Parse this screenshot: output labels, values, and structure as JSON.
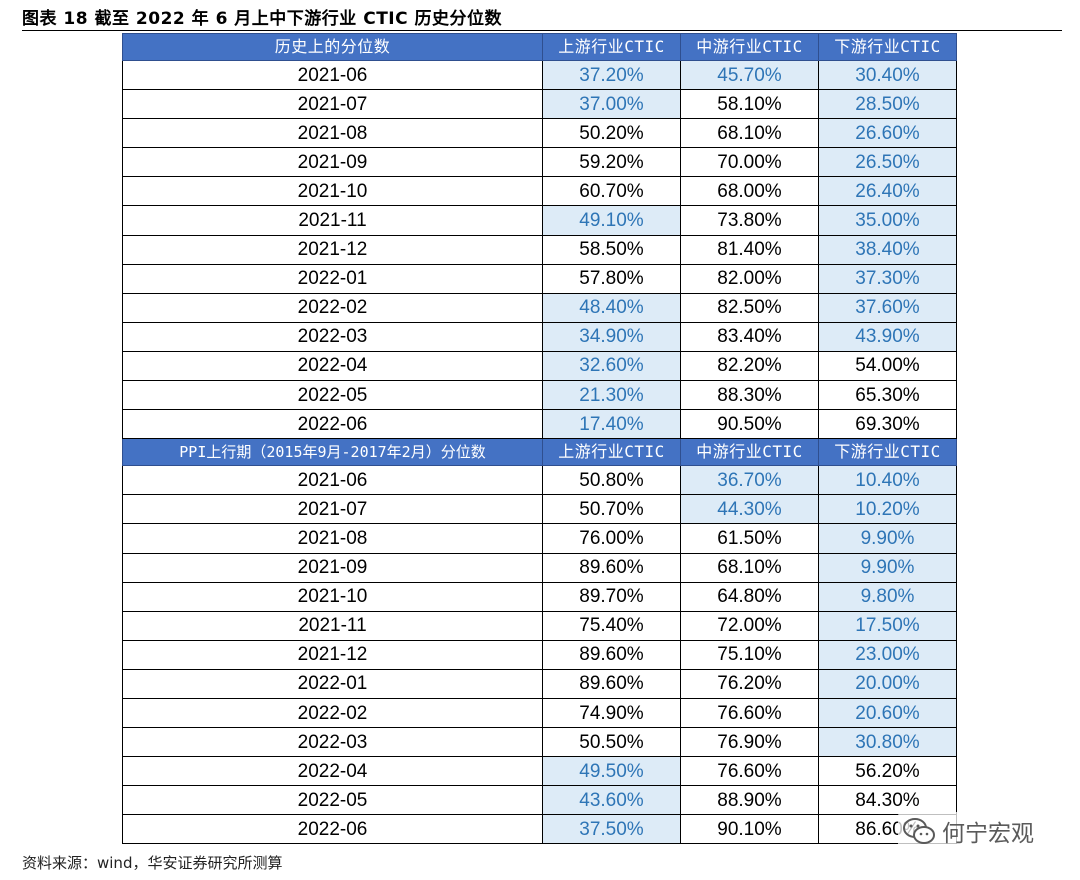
{
  "title": "图表 18  截至 2022 年 6 月上中下游行业 CTIC 历史分位数",
  "source": "资料来源：wind，华安证券研究所测算",
  "watermark": "何宁宏观",
  "colors": {
    "header_bg": "#4472c4",
    "highlight_bg": "#ddebf7",
    "highlight_text": "#2e75b6"
  },
  "sections": [
    {
      "header": [
        "历史上的分位数",
        "上游行业CTIC",
        "中游行业CTIC",
        "下游行业CTIC"
      ],
      "rows": [
        {
          "date": "2021-06",
          "up": "37.20%",
          "mid": "45.70%",
          "down": "30.40%",
          "hl": [
            true,
            true,
            true
          ]
        },
        {
          "date": "2021-07",
          "up": "37.00%",
          "mid": "58.10%",
          "down": "28.50%",
          "hl": [
            true,
            false,
            true
          ]
        },
        {
          "date": "2021-08",
          "up": "50.20%",
          "mid": "68.10%",
          "down": "26.60%",
          "hl": [
            false,
            false,
            true
          ]
        },
        {
          "date": "2021-09",
          "up": "59.20%",
          "mid": "70.00%",
          "down": "26.50%",
          "hl": [
            false,
            false,
            true
          ]
        },
        {
          "date": "2021-10",
          "up": "60.70%",
          "mid": "68.00%",
          "down": "26.40%",
          "hl": [
            false,
            false,
            true
          ]
        },
        {
          "date": "2021-11",
          "up": "49.10%",
          "mid": "73.80%",
          "down": "35.00%",
          "hl": [
            true,
            false,
            true
          ]
        },
        {
          "date": "2021-12",
          "up": "58.50%",
          "mid": "81.40%",
          "down": "38.40%",
          "hl": [
            false,
            false,
            true
          ]
        },
        {
          "date": "2022-01",
          "up": "57.80%",
          "mid": "82.00%",
          "down": "37.30%",
          "hl": [
            false,
            false,
            true
          ]
        },
        {
          "date": "2022-02",
          "up": "48.40%",
          "mid": "82.50%",
          "down": "37.60%",
          "hl": [
            true,
            false,
            true
          ]
        },
        {
          "date": "2022-03",
          "up": "34.90%",
          "mid": "83.40%",
          "down": "43.90%",
          "hl": [
            true,
            false,
            true
          ]
        },
        {
          "date": "2022-04",
          "up": "32.60%",
          "mid": "82.20%",
          "down": "54.00%",
          "hl": [
            true,
            false,
            false
          ]
        },
        {
          "date": "2022-05",
          "up": "21.30%",
          "mid": "88.30%",
          "down": "65.30%",
          "hl": [
            true,
            false,
            false
          ]
        },
        {
          "date": "2022-06",
          "up": "17.40%",
          "mid": "90.50%",
          "down": "69.30%",
          "hl": [
            true,
            false,
            false
          ]
        }
      ]
    },
    {
      "header": [
        "PPI上行期（2015年9月-2017年2月）分位数",
        "上游行业CTIC",
        "中游行业CTIC",
        "下游行业CTIC"
      ],
      "rows": [
        {
          "date": "2021-06",
          "up": "50.80%",
          "mid": "36.70%",
          "down": "10.40%",
          "hl": [
            false,
            true,
            true
          ]
        },
        {
          "date": "2021-07",
          "up": "50.70%",
          "mid": "44.30%",
          "down": "10.20%",
          "hl": [
            false,
            true,
            true
          ]
        },
        {
          "date": "2021-08",
          "up": "76.00%",
          "mid": "61.50%",
          "down": "9.90%",
          "hl": [
            false,
            false,
            true
          ]
        },
        {
          "date": "2021-09",
          "up": "89.60%",
          "mid": "68.10%",
          "down": "9.90%",
          "hl": [
            false,
            false,
            true
          ]
        },
        {
          "date": "2021-10",
          "up": "89.70%",
          "mid": "64.80%",
          "down": "9.80%",
          "hl": [
            false,
            false,
            true
          ]
        },
        {
          "date": "2021-11",
          "up": "75.40%",
          "mid": "72.00%",
          "down": "17.50%",
          "hl": [
            false,
            false,
            true
          ]
        },
        {
          "date": "2021-12",
          "up": "89.60%",
          "mid": "75.10%",
          "down": "23.00%",
          "hl": [
            false,
            false,
            true
          ]
        },
        {
          "date": "2022-01",
          "up": "89.60%",
          "mid": "76.20%",
          "down": "20.00%",
          "hl": [
            false,
            false,
            true
          ]
        },
        {
          "date": "2022-02",
          "up": "74.90%",
          "mid": "76.60%",
          "down": "20.60%",
          "hl": [
            false,
            false,
            true
          ]
        },
        {
          "date": "2022-03",
          "up": "50.50%",
          "mid": "76.90%",
          "down": "30.80%",
          "hl": [
            false,
            false,
            true
          ]
        },
        {
          "date": "2022-04",
          "up": "49.50%",
          "mid": "76.60%",
          "down": "56.20%",
          "hl": [
            true,
            false,
            false
          ]
        },
        {
          "date": "2022-05",
          "up": "43.60%",
          "mid": "88.90%",
          "down": "84.30%",
          "hl": [
            true,
            false,
            false
          ]
        },
        {
          "date": "2022-06",
          "up": "37.50%",
          "mid": "90.10%",
          "down": "86.60%",
          "hl": [
            true,
            false,
            false
          ]
        }
      ]
    }
  ]
}
